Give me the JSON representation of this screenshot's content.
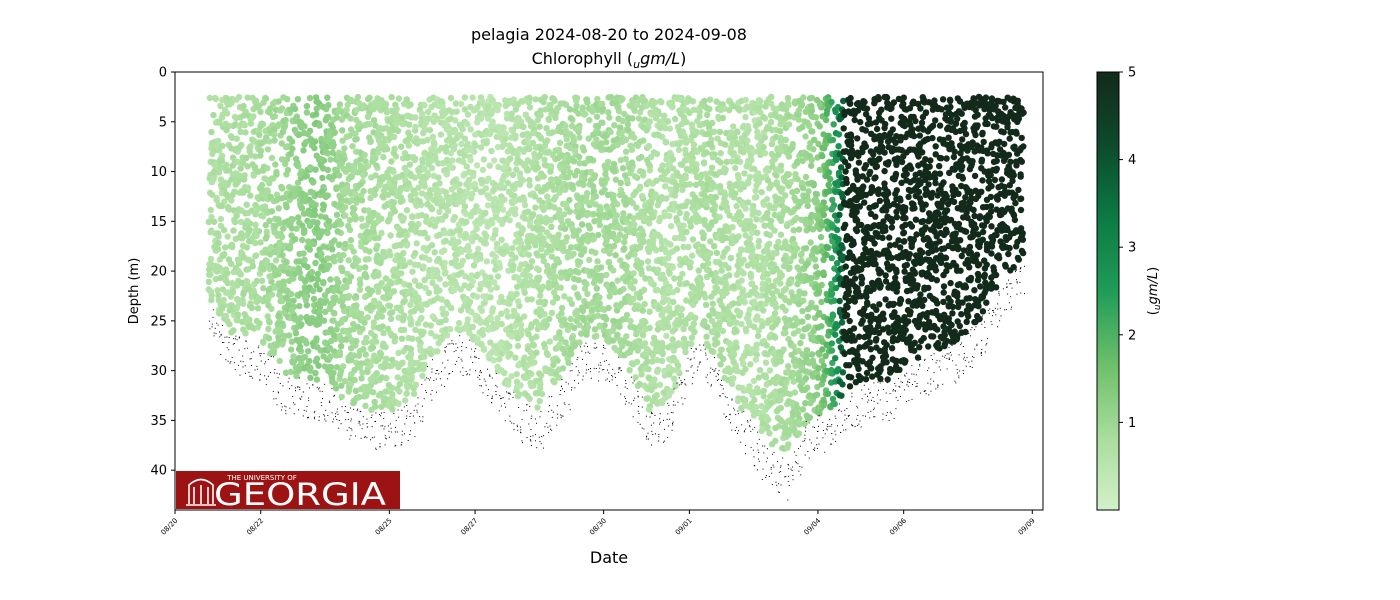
{
  "chart_data": {
    "type": "scatter",
    "title": "pelagia 2024-08-20 to 2024-09-08",
    "subtitle_prefix": "Chlorophyll (",
    "subtitle_subscript": "u",
    "subtitle_unit": "gm/L",
    "subtitle_suffix": ")",
    "xlabel": "Date",
    "ylabel": "Depth (m)",
    "y_inverted": true,
    "ylim": [
      44,
      0
    ],
    "yticks": [
      0,
      5,
      10,
      15,
      20,
      25,
      30,
      35,
      40
    ],
    "xlim": [
      "2024-08-20T00:00",
      "2024-09-09T06:00"
    ],
    "xtick_values": [
      "2024-08-20",
      "2024-08-22",
      "2024-08-25",
      "2024-08-27",
      "2024-08-30",
      "2024-09-01",
      "2024-09-04",
      "2024-09-06",
      "2024-09-09"
    ],
    "xtick_labels": [
      "08/20",
      "08/22",
      "08/25",
      "08/27",
      "08/30",
      "09/01",
      "09/04",
      "09/06",
      "09/09"
    ],
    "colorbar": {
      "label_subscript": "u",
      "label_unit": "gm/L",
      "range": [
        0,
        5
      ],
      "ticks": [
        1,
        2,
        3,
        4,
        5
      ],
      "colors": [
        "#d2f0c8",
        "#a8dd9c",
        "#6cbf6a",
        "#1f9c58",
        "#0c7a44",
        "#0d4a2c",
        "#132a1a"
      ]
    },
    "profiles": {
      "time_start": "2024-08-20T20:00",
      "time_end": "2024-09-08T18:00",
      "surface_depth": 2.5,
      "bottom_depth": [
        [
          "2024-08-20T20:00",
          23
        ],
        [
          "2024-08-21T06:00",
          26
        ],
        [
          "2024-08-21T16:00",
          27
        ],
        [
          "2024-08-22T00:00",
          27
        ],
        [
          "2024-08-22T12:00",
          30
        ],
        [
          "2024-08-23T00:00",
          31
        ],
        [
          "2024-08-23T12:00",
          31
        ],
        [
          "2024-08-24T00:00",
          33
        ],
        [
          "2024-08-24T12:00",
          34
        ],
        [
          "2024-08-25T00:00",
          34
        ],
        [
          "2024-08-25T12:00",
          33
        ],
        [
          "2024-08-26T00:00",
          29
        ],
        [
          "2024-08-26T12:00",
          26
        ],
        [
          "2024-08-27T00:00",
          27
        ],
        [
          "2024-08-27T12:00",
          30
        ],
        [
          "2024-08-28T00:00",
          33
        ],
        [
          "2024-08-28T12:00",
          34
        ],
        [
          "2024-08-29T00:00",
          31
        ],
        [
          "2024-08-29T12:00",
          27
        ],
        [
          "2024-08-30T00:00",
          27
        ],
        [
          "2024-08-30T12:00",
          29
        ],
        [
          "2024-08-31T00:00",
          34
        ],
        [
          "2024-08-31T12:00",
          33
        ],
        [
          "2024-09-01T00:00",
          28
        ],
        [
          "2024-09-01T06:00",
          26
        ],
        [
          "2024-09-01T18:00",
          30
        ],
        [
          "2024-09-02T06:00",
          34
        ],
        [
          "2024-09-02T18:00",
          37
        ],
        [
          "2024-09-03T06:00",
          39
        ],
        [
          "2024-09-03T18:00",
          35
        ],
        [
          "2024-09-04T06:00",
          34
        ],
        [
          "2024-09-04T18:00",
          32
        ],
        [
          "2024-09-05T06:00",
          31
        ],
        [
          "2024-09-05T18:00",
          31
        ],
        [
          "2024-09-06T06:00",
          29
        ],
        [
          "2024-09-06T18:00",
          28
        ],
        [
          "2024-09-07T06:00",
          27
        ],
        [
          "2024-09-07T18:00",
          25
        ],
        [
          "2024-09-08T06:00",
          21
        ],
        [
          "2024-09-08T18:00",
          19
        ]
      ],
      "chlorophyll": [
        [
          "2024-08-20T20:00",
          0.7
        ],
        [
          "2024-08-22T00:00",
          0.8
        ],
        [
          "2024-08-23T08:00",
          1.3
        ],
        [
          "2024-08-24T00:00",
          0.9
        ],
        [
          "2024-08-26T00:00",
          0.6
        ],
        [
          "2024-08-27T12:00",
          0.5
        ],
        [
          "2024-08-29T12:00",
          0.9
        ],
        [
          "2024-08-30T08:00",
          0.9
        ],
        [
          "2024-08-31T12:00",
          0.6
        ],
        [
          "2024-09-01T12:00",
          0.8
        ],
        [
          "2024-09-02T12:00",
          0.6
        ],
        [
          "2024-09-03T12:00",
          0.9
        ],
        [
          "2024-09-04T00:00",
          1.2
        ],
        [
          "2024-09-04T08:00",
          2.2
        ],
        [
          "2024-09-04T12:00",
          3.0
        ],
        [
          "2024-09-04T15:00",
          5.0
        ],
        [
          "2024-09-08T18:00",
          5.0
        ]
      ]
    }
  },
  "logo": {
    "line1": "THE UNIVERSITY OF",
    "line2": "GEORGIA",
    "background": "#9d1212"
  }
}
